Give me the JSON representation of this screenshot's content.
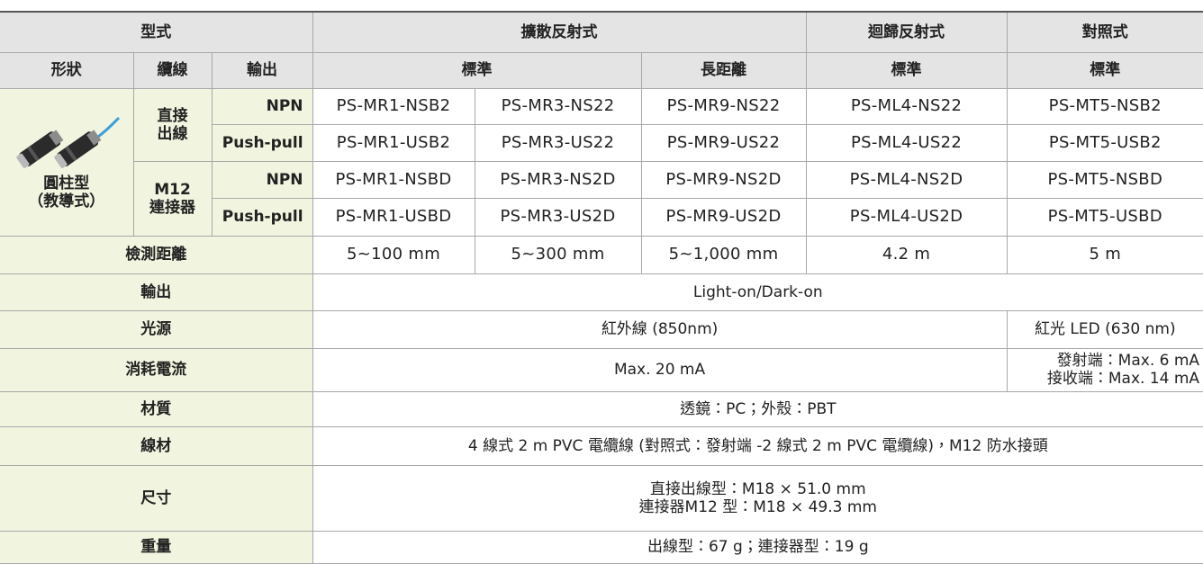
{
  "header": {
    "model_label": "型式",
    "groups": [
      "擴散反射式",
      "迴歸反射式",
      "對照式"
    ],
    "shape_label": "形狀",
    "cable_label": "纜線",
    "output_label": "輸出",
    "subtypes": [
      "標準",
      "長距離",
      "標準",
      "標準"
    ]
  },
  "product": {
    "shape": [
      "圓柱型",
      "（教導式）"
    ],
    "cables": [
      {
        "name": [
          "直接",
          "出線"
        ],
        "outputs": [
          {
            "type": "NPN",
            "models": [
              "PS-MR1-NSB2",
              "PS-MR3-NS22",
              "PS-MR9-NS22",
              "PS-ML4-NS22",
              "PS-MT5-NSB2"
            ]
          },
          {
            "type": "Push-pull",
            "models": [
              "PS-MR1-USB2",
              "PS-MR3-US22",
              "PS-MR9-US22",
              "PS-ML4-US22",
              "PS-MT5-USB2"
            ]
          }
        ]
      },
      {
        "name": [
          "M12",
          "連接器"
        ],
        "outputs": [
          {
            "type": "NPN",
            "models": [
              "PS-MR1-NSBD",
              "PS-MR3-NS2D",
              "PS-MR9-NS2D",
              "PS-ML4-NS2D",
              "PS-MT5-NSBD"
            ]
          },
          {
            "type": "Push-pull",
            "models": [
              "PS-MR1-USBD",
              "PS-MR3-US2D",
              "PS-MR9-US2D",
              "PS-ML4-US2D",
              "PS-MT5-USBD"
            ]
          }
        ]
      }
    ]
  },
  "specs": [
    {
      "label": "檢測距離",
      "values": [
        "5~100 mm",
        "5~300 mm",
        "5~1,000 mm",
        "4.2 m",
        "5 m"
      ]
    },
    {
      "label": "輸出",
      "values": [
        "Light-on/Dark-on"
      ]
    },
    {
      "label": "光源",
      "values": [
        "紅外線 (850nm)",
        "紅光 LED (630 nm)"
      ]
    },
    {
      "label": "消耗電流",
      "values": [
        "Max. 20 mA",
        [
          "發射端：Max. 6 mA",
          "接收端：Max. 14 mA"
        ]
      ]
    },
    {
      "label": "材質",
      "values": [
        "透鏡：PC；外殼：PBT"
      ]
    },
    {
      "label": "線材",
      "values": [
        "4 線式 2 m PVC 電纜線 (對照式：發射端 -2 線式 2 m PVC 電纜線)，M12 防水接頭"
      ]
    },
    {
      "label": "尺寸",
      "values": [
        [
          "直接出線型：M18 × 51.0 mm",
          "連接器M12 型：M18 × 49.3 mm"
        ]
      ]
    },
    {
      "label": "重量",
      "values": [
        "出線型：67 g；連接器型：19 g"
      ]
    }
  ]
}
